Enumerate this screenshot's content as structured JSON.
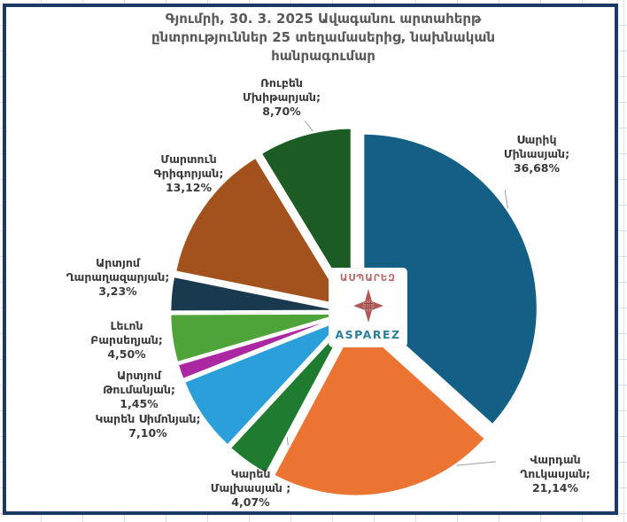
{
  "page": {
    "background_grid_color": "#d7e0ee",
    "panel_border_color": "#1b3a66"
  },
  "title": {
    "text": "Գյումրի, 30. 3. 2025 Ավագանու արտահերթ\nընտրություններ 25 տեղամասերից, նախնական\nհանրագումար",
    "color": "#595959"
  },
  "logo": {
    "armenian": "ԱՍՊԱՐԵԶ",
    "latin": "ASPAREZ",
    "armenian_color": "#b96b6b",
    "latin_color": "#2a7f9e",
    "star_color": "#a94747"
  },
  "chart_data": {
    "type": "pie",
    "title": "Գյումրի, 30. 3. 2025 Ավագանու արտահերթ ընտրություններ 25 տեղամասերից, նախնական հանրագումար",
    "direction": "clockwise",
    "start_angle_deg": 0,
    "exploded": true,
    "legend": false,
    "slices": [
      {
        "name": "Սարիկ Մինասյան",
        "value": 36.68,
        "label": "Սարիկ\nՄինասյան;\n36,68%",
        "color": "#145F86"
      },
      {
        "name": "Վարդան Ղուկասյան",
        "value": 21.14,
        "label": "Վարդան\nՂուկասյան;\n21,14%",
        "color": "#EC7433"
      },
      {
        "name": "Կարեն Մալխասյան",
        "value": 4.07,
        "label": "Կարեն\nՄալխասյան ;\n4,07%",
        "color": "#1E7B2F"
      },
      {
        "name": "Կարեն Սիմոնյան",
        "value": 7.1,
        "label": "Կարեն Սիմոնյան;\n7,10%",
        "color": "#2B9FD9"
      },
      {
        "name": "Արտյոմ Թումանյան",
        "value": 1.45,
        "label": "Արտյոմ\nԹումանյան;\n1,45%",
        "color": "#AB28A2"
      },
      {
        "name": "Լեւոն Բարսեղյան",
        "value": 4.5,
        "label": "Լեւոն\nԲարսեղյան;\n4,50%",
        "color": "#4EA438"
      },
      {
        "name": "Արտյոմ Ղարաղազարյան",
        "value": 3.23,
        "label": "Արտյոմ\nՂարաղազարյան;\n3,23%",
        "color": "#19394F"
      },
      {
        "name": "Մարտուն Գրիգորյան",
        "value": 13.12,
        "label": "Մարտուն\nԳրիգորյան;\n13,12%",
        "color": "#A4521D"
      },
      {
        "name": "Ռուբեն Մխիթարյան",
        "value": 8.7,
        "label": "Ռուբեն\nՄխիթարյան;\n8,70%",
        "color": "#1D5B24"
      }
    ]
  }
}
